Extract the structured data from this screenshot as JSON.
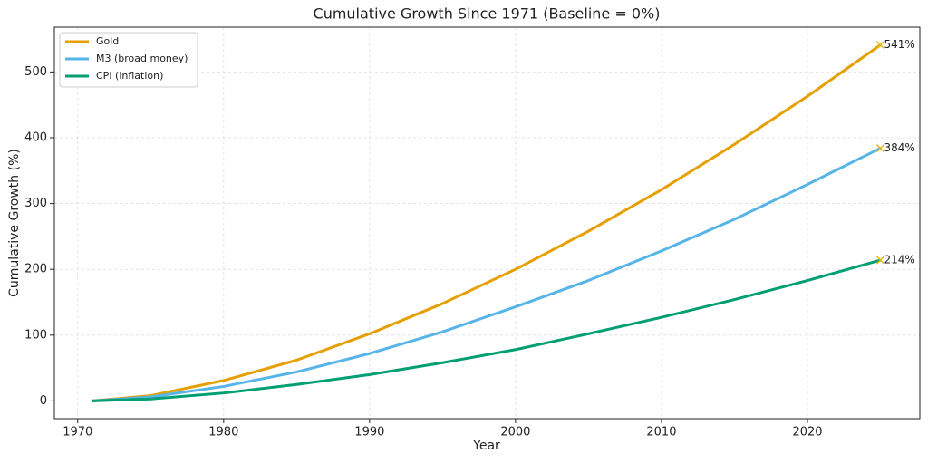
{
  "chart_data": {
    "type": "line",
    "title": "Cumulative Growth Since 1971 (Baseline = 0%)",
    "x_label": "Year",
    "y_label": "Cumulative Growth (%)",
    "x": [
      1971,
      1975,
      1980,
      1985,
      1990,
      1995,
      2000,
      2005,
      2010,
      2015,
      2020,
      2025
    ],
    "series": [
      {
        "name": "Gold",
        "color": "#e69f00",
        "values": [
          0,
          8,
          31,
          62,
          102,
          148,
          200,
          258,
          321,
          390,
          463,
          541
        ],
        "value_labels": [
          null,
          null,
          null,
          null,
          null,
          null,
          null,
          null,
          null,
          null,
          null,
          "541%"
        ]
      },
      {
        "name": "M3 (broad money)",
        "color": "#56b4e9",
        "values": [
          0,
          6,
          22,
          44,
          72,
          105,
          143,
          183,
          228,
          276,
          329,
          384
        ],
        "value_labels": [
          null,
          null,
          null,
          null,
          null,
          null,
          null,
          null,
          null,
          null,
          null,
          "384%"
        ]
      },
      {
        "name": "CPI (inflation)",
        "color": "#009e73",
        "values": [
          0,
          3,
          12,
          25,
          40,
          58,
          78,
          102,
          127,
          154,
          183,
          214
        ],
        "value_labels": [
          null,
          null,
          null,
          null,
          null,
          null,
          null,
          null,
          null,
          null,
          null,
          "214%"
        ]
      }
    ],
    "xlim": [
      1968.4,
      2027.7
    ],
    "xticks": [
      1970,
      1980,
      1990,
      2000,
      2010,
      2020
    ],
    "ylim": [
      -27,
      568
    ],
    "yticks": [
      0,
      100,
      200,
      300,
      400,
      500
    ],
    "grid": true,
    "legend": "upper-left"
  }
}
